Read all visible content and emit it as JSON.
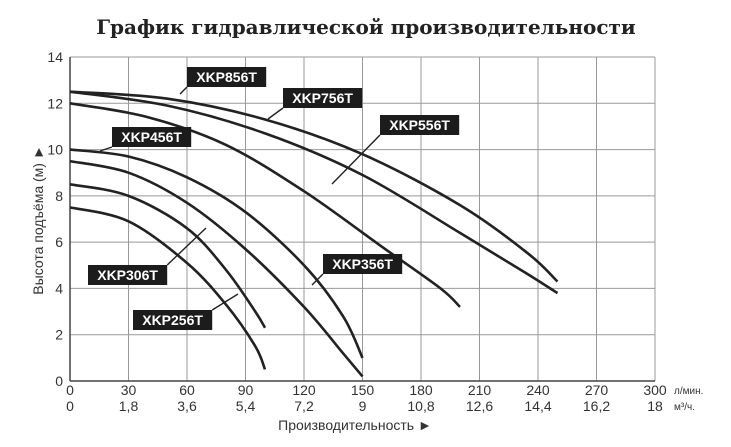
{
  "chart_data": {
    "type": "line",
    "title": "График гидравлической производительности",
    "xlabel": "Производительность ►",
    "ylabel": "Высота подъёма (м) ►",
    "x_unit_primary": "л/мин.",
    "x_unit_secondary": "м³/ч.",
    "xlim": [
      0,
      300
    ],
    "ylim": [
      0,
      14
    ],
    "x_ticks_primary": [
      "0",
      "30",
      "60",
      "90",
      "120",
      "150",
      "180",
      "210",
      "240",
      "270",
      "300"
    ],
    "x_ticks_secondary": [
      "0",
      "1,8",
      "3,6",
      "5,4",
      "7,2",
      "9",
      "10,8",
      "12,6",
      "14,4",
      "16,2",
      "18"
    ],
    "y_ticks": [
      "0",
      "2",
      "4",
      "6",
      "8",
      "10",
      "12",
      "14"
    ],
    "grid": true,
    "series": [
      {
        "name": "XKP856T",
        "points": [
          [
            0,
            12.5
          ],
          [
            50,
            12.2
          ],
          [
            100,
            11.3
          ],
          [
            150,
            9.8
          ],
          [
            200,
            7.6
          ],
          [
            235,
            5.5
          ],
          [
            250,
            4.3
          ]
        ]
      },
      {
        "name": "XKP756T",
        "points": [
          [
            0,
            12.5
          ],
          [
            50,
            11.9
          ],
          [
            100,
            10.7
          ],
          [
            150,
            8.9
          ],
          [
            200,
            6.4
          ],
          [
            235,
            4.6
          ],
          [
            250,
            3.8
          ]
        ]
      },
      {
        "name": "XKP556T",
        "points": [
          [
            0,
            12.0
          ],
          [
            40,
            11.4
          ],
          [
            80,
            10.2
          ],
          [
            120,
            8.2
          ],
          [
            160,
            5.8
          ],
          [
            190,
            4.0
          ],
          [
            200,
            3.2
          ]
        ]
      },
      {
        "name": "XKP456T",
        "points": [
          [
            0,
            10.0
          ],
          [
            30,
            9.7
          ],
          [
            60,
            8.8
          ],
          [
            90,
            7.3
          ],
          [
            120,
            5.0
          ],
          [
            140,
            2.8
          ],
          [
            150,
            1.0
          ]
        ]
      },
      {
        "name": "XKP356T",
        "points": [
          [
            0,
            9.5
          ],
          [
            30,
            9.0
          ],
          [
            60,
            7.7
          ],
          [
            90,
            5.7
          ],
          [
            120,
            3.2
          ],
          [
            140,
            1.2
          ],
          [
            150,
            0.2
          ]
        ]
      },
      {
        "name": "XKP306T",
        "points": [
          [
            0,
            8.5
          ],
          [
            30,
            8.0
          ],
          [
            60,
            6.6
          ],
          [
            80,
            4.8
          ],
          [
            95,
            3.0
          ],
          [
            100,
            2.3
          ]
        ]
      },
      {
        "name": "XKP256T",
        "points": [
          [
            0,
            7.5
          ],
          [
            30,
            6.9
          ],
          [
            60,
            5.1
          ],
          [
            80,
            3.3
          ],
          [
            95,
            1.5
          ],
          [
            100,
            0.5
          ]
        ]
      }
    ]
  }
}
